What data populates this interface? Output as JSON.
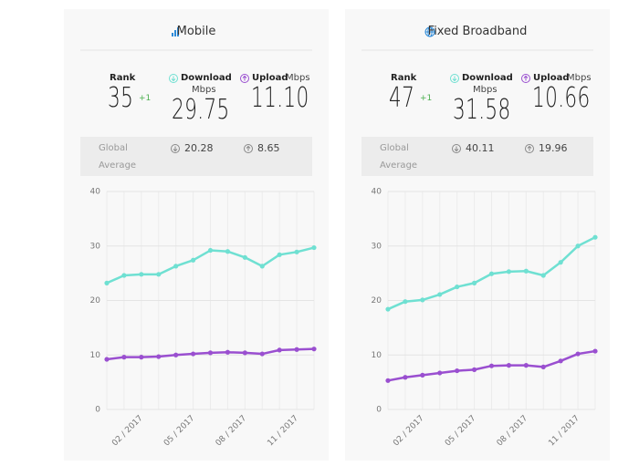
{
  "panels": [
    {
      "title": "Mobile",
      "rank_label": "Rank",
      "rank": "35",
      "rank_change": "+1",
      "download_label": "Download",
      "download_unit": "Mbps",
      "download": "29.75",
      "upload_label": "Upload",
      "upload_unit": "Mbps",
      "upload": "11.10",
      "global_label": "Global Average",
      "global_download": "20.28",
      "global_upload": "8.65"
    },
    {
      "title": "Fixed Broadband",
      "rank_label": "Rank",
      "rank": "47",
      "rank_change": "+1",
      "download_label": "Download",
      "download_unit": "Mbps",
      "download": "31.58",
      "upload_label": "Upload",
      "upload_unit": "Mbps",
      "upload": "10.66",
      "global_label": "Global Average",
      "global_download": "40.11",
      "global_upload": "19.96"
    }
  ],
  "chart_data": [
    {
      "type": "line",
      "categories": [
        null,
        null,
        "02 / 2017",
        null,
        null,
        "05 / 2017",
        null,
        null,
        "08 / 2017",
        null,
        null,
        "11 / 2017",
        null
      ],
      "series": [
        {
          "name": "Download",
          "color": "#6fe0d2",
          "values": [
            23.2,
            24.6,
            24.8,
            24.8,
            26.3,
            27.4,
            29.2,
            29.0,
            27.9,
            26.3,
            28.4,
            28.9,
            29.7
          ]
        },
        {
          "name": "Upload",
          "color": "#9a4fd0",
          "values": [
            9.2,
            9.6,
            9.6,
            9.7,
            10.0,
            10.2,
            10.4,
            10.5,
            10.4,
            10.2,
            10.9,
            11.0,
            11.1
          ]
        }
      ],
      "ylim": [
        0,
        40
      ],
      "yticks": [
        0,
        10,
        20,
        30,
        40
      ],
      "grid": true
    },
    {
      "type": "line",
      "categories": [
        null,
        null,
        "02 / 2017",
        null,
        null,
        "05 / 2017",
        null,
        null,
        "08 / 2017",
        null,
        null,
        "11 / 2017",
        null
      ],
      "series": [
        {
          "name": "Download",
          "color": "#6fe0d2",
          "values": [
            18.4,
            19.8,
            20.1,
            21.1,
            22.5,
            23.2,
            24.9,
            25.3,
            25.4,
            24.6,
            27.0,
            30.0,
            31.6
          ]
        },
        {
          "name": "Upload",
          "color": "#9a4fd0",
          "values": [
            5.3,
            5.9,
            6.3,
            6.7,
            7.1,
            7.3,
            8.0,
            8.1,
            8.1,
            7.8,
            8.9,
            10.2,
            10.7
          ]
        }
      ],
      "ylim": [
        0,
        40
      ],
      "yticks": [
        0,
        10,
        20,
        30,
        40
      ],
      "grid": true
    }
  ]
}
